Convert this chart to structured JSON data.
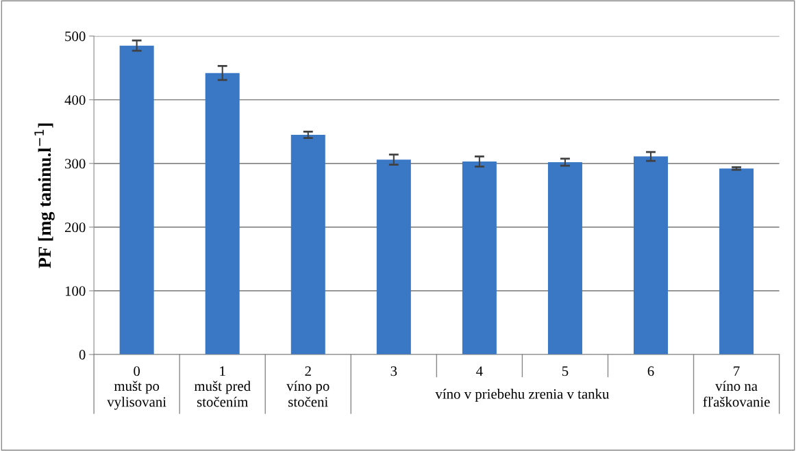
{
  "chart_data": {
    "type": "bar",
    "ylabel": "PF [mg taninu.l$^{−1}$]",
    "categories": [
      "0",
      "1",
      "2",
      "3",
      "4",
      "5",
      "6",
      "7"
    ],
    "values": [
      485,
      442,
      345,
      306,
      303,
      302,
      311,
      292
    ],
    "errors": [
      8,
      11,
      5,
      8,
      8,
      5.5,
      7,
      2
    ],
    "color": "#3a78c6",
    "ylim": [
      0,
      500
    ],
    "yticks": [
      0,
      100,
      200,
      300,
      400,
      500
    ],
    "grid": "y",
    "annotations": [
      "mušt po\nvylisovani",
      "mušt pred\nstočením",
      "víno po\nstočeni",
      "víno v priebehu zrenia v tanku",
      "víno na\nfľaškovanie"
    ]
  }
}
